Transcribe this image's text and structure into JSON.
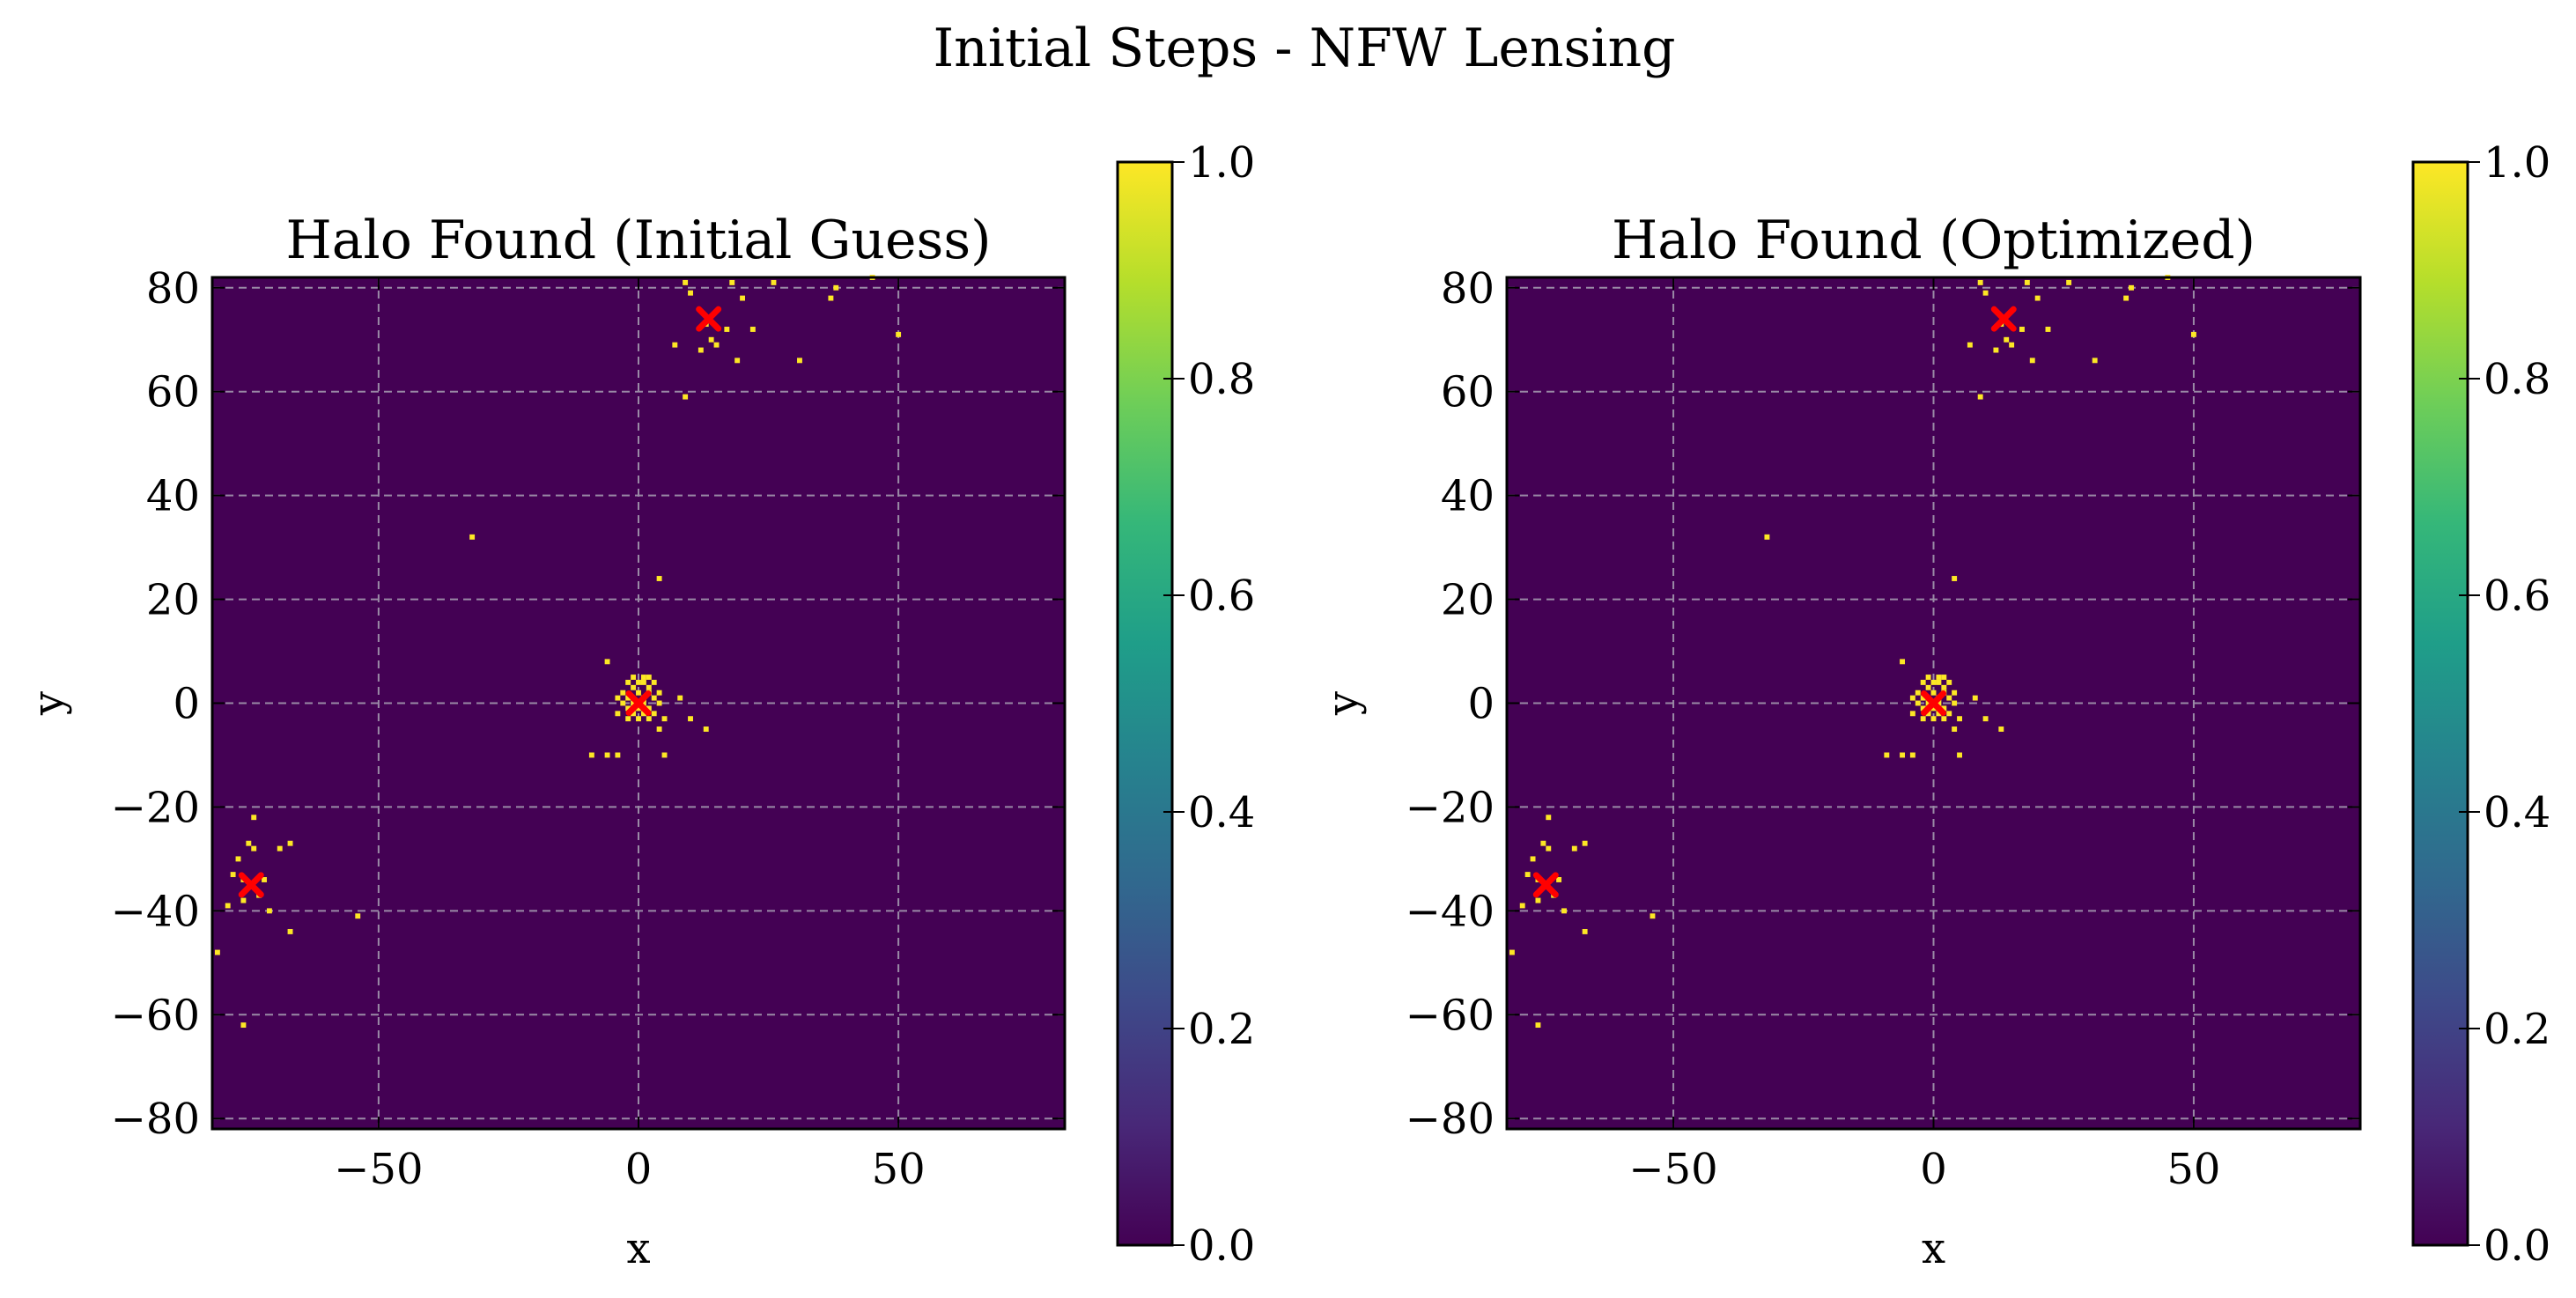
{
  "figure": {
    "title": "Initial Steps - NFW Lensing",
    "colors": {
      "background": "#440154",
      "source_pixel": "#fde725",
      "halo_marker": "#ff0000",
      "grid": "#9a8aa6",
      "colormap": [
        "#440154",
        "#482878",
        "#3e4989",
        "#31688e",
        "#26828e",
        "#1f9e89",
        "#35b779",
        "#6ece58",
        "#b5de2b",
        "#fde725"
      ]
    }
  },
  "chart_data": [
    {
      "type": "heatmap",
      "title": "Halo Found (Initial Guess)",
      "xlabel": "x",
      "ylabel": "y",
      "xlim": [
        -82,
        82
      ],
      "ylim": [
        -82,
        82
      ],
      "xticks": [
        -50,
        0,
        50
      ],
      "xtick_labels": [
        "−50",
        "0",
        "50"
      ],
      "yticks": [
        -80,
        -60,
        -40,
        -20,
        0,
        20,
        40,
        60,
        80
      ],
      "ytick_labels": [
        "−80",
        "−60",
        "−40",
        "−20",
        "0",
        "20",
        "40",
        "60",
        "80"
      ],
      "grid": true,
      "colorbar": {
        "range": [
          0.0,
          1.0
        ],
        "ticks": [
          0.0,
          0.2,
          0.4,
          0.6,
          0.8,
          1.0
        ],
        "tick_labels": [
          "0.0",
          "0.2",
          "0.4",
          "0.6",
          "0.8",
          "1.0"
        ],
        "colormap": "viridis"
      },
      "halos": [
        [
          13.5,
          74
        ],
        [
          0,
          0
        ],
        [
          -74.5,
          -35
        ]
      ],
      "pixels_value": 1.0,
      "pixels": [
        [
          9,
          81
        ],
        [
          18,
          81
        ],
        [
          26,
          81
        ],
        [
          45,
          82
        ],
        [
          10,
          79
        ],
        [
          20,
          78
        ],
        [
          38,
          80
        ],
        [
          37,
          78
        ],
        [
          22,
          72
        ],
        [
          13,
          73
        ],
        [
          14,
          70
        ],
        [
          15,
          69
        ],
        [
          17,
          72
        ],
        [
          12,
          68
        ],
        [
          7,
          69
        ],
        [
          19,
          66
        ],
        [
          31,
          66
        ],
        [
          50,
          71
        ],
        [
          9,
          59
        ],
        [
          -32,
          32
        ],
        [
          4,
          24
        ],
        [
          -6,
          8
        ],
        [
          -1,
          5
        ],
        [
          1,
          5
        ],
        [
          2,
          5
        ],
        [
          -2,
          4
        ],
        [
          0,
          4
        ],
        [
          1,
          4
        ],
        [
          3,
          4
        ],
        [
          -1,
          3
        ],
        [
          2,
          3
        ],
        [
          -3,
          2
        ],
        [
          0,
          2
        ],
        [
          2,
          2
        ],
        [
          4,
          2
        ],
        [
          -4,
          1
        ],
        [
          -2,
          1
        ],
        [
          1,
          1
        ],
        [
          3,
          1
        ],
        [
          -3,
          0
        ],
        [
          -1,
          0
        ],
        [
          1,
          0
        ],
        [
          4,
          0
        ],
        [
          -2,
          -1
        ],
        [
          0,
          -1
        ],
        [
          2,
          -1
        ],
        [
          -4,
          -2
        ],
        [
          -1,
          -2
        ],
        [
          1,
          -2
        ],
        [
          3,
          -2
        ],
        [
          -2,
          -3
        ],
        [
          0,
          -3
        ],
        [
          2,
          -3
        ],
        [
          5,
          -3
        ],
        [
          8,
          1
        ],
        [
          10,
          -3
        ],
        [
          13,
          -5
        ],
        [
          4,
          -5
        ],
        [
          -9,
          -10
        ],
        [
          -6,
          -10
        ],
        [
          -4,
          -10
        ],
        [
          5,
          -10
        ],
        [
          -74,
          -22
        ],
        [
          -75,
          -27
        ],
        [
          -74,
          -28
        ],
        [
          -69,
          -28
        ],
        [
          -67,
          -27
        ],
        [
          -77,
          -30
        ],
        [
          -78,
          -33
        ],
        [
          -76,
          -34
        ],
        [
          -72,
          -34
        ],
        [
          -73,
          -37
        ],
        [
          -79,
          -39
        ],
        [
          -76,
          -38
        ],
        [
          -71,
          -40
        ],
        [
          -67,
          -44
        ],
        [
          -54,
          -41
        ],
        [
          -81,
          -48
        ],
        [
          -76,
          -62
        ]
      ]
    },
    {
      "type": "heatmap",
      "title": "Halo Found (Optimized)",
      "xlabel": "x",
      "ylabel": "y",
      "xlim": [
        -82,
        82
      ],
      "ylim": [
        -82,
        82
      ],
      "xticks": [
        -50,
        0,
        50
      ],
      "xtick_labels": [
        "−50",
        "0",
        "50"
      ],
      "yticks": [
        -80,
        -60,
        -40,
        -20,
        0,
        20,
        40,
        60,
        80
      ],
      "ytick_labels": [
        "−80",
        "−60",
        "−40",
        "−20",
        "0",
        "20",
        "40",
        "60",
        "80"
      ],
      "grid": true,
      "colorbar": {
        "range": [
          0.0,
          1.0
        ],
        "ticks": [
          0.0,
          0.2,
          0.4,
          0.6,
          0.8,
          1.0
        ],
        "tick_labels": [
          "0.0",
          "0.2",
          "0.4",
          "0.6",
          "0.8",
          "1.0"
        ],
        "colormap": "viridis"
      },
      "halos": [
        [
          13.5,
          74
        ],
        [
          0,
          0
        ],
        [
          -74.5,
          -35
        ]
      ],
      "pixels_value": 1.0,
      "pixels": [
        [
          9,
          81
        ],
        [
          18,
          81
        ],
        [
          26,
          81
        ],
        [
          45,
          82
        ],
        [
          10,
          79
        ],
        [
          20,
          78
        ],
        [
          38,
          80
        ],
        [
          37,
          78
        ],
        [
          22,
          72
        ],
        [
          13,
          73
        ],
        [
          14,
          70
        ],
        [
          15,
          69
        ],
        [
          17,
          72
        ],
        [
          12,
          68
        ],
        [
          7,
          69
        ],
        [
          19,
          66
        ],
        [
          31,
          66
        ],
        [
          50,
          71
        ],
        [
          9,
          59
        ],
        [
          -32,
          32
        ],
        [
          4,
          24
        ],
        [
          -6,
          8
        ],
        [
          -1,
          5
        ],
        [
          1,
          5
        ],
        [
          2,
          5
        ],
        [
          -2,
          4
        ],
        [
          0,
          4
        ],
        [
          1,
          4
        ],
        [
          3,
          4
        ],
        [
          -1,
          3
        ],
        [
          2,
          3
        ],
        [
          -3,
          2
        ],
        [
          0,
          2
        ],
        [
          2,
          2
        ],
        [
          4,
          2
        ],
        [
          -4,
          1
        ],
        [
          -2,
          1
        ],
        [
          1,
          1
        ],
        [
          3,
          1
        ],
        [
          -3,
          0
        ],
        [
          -1,
          0
        ],
        [
          1,
          0
        ],
        [
          4,
          0
        ],
        [
          -2,
          -1
        ],
        [
          0,
          -1
        ],
        [
          2,
          -1
        ],
        [
          -4,
          -2
        ],
        [
          -1,
          -2
        ],
        [
          1,
          -2
        ],
        [
          3,
          -2
        ],
        [
          -2,
          -3
        ],
        [
          0,
          -3
        ],
        [
          2,
          -3
        ],
        [
          5,
          -3
        ],
        [
          8,
          1
        ],
        [
          10,
          -3
        ],
        [
          13,
          -5
        ],
        [
          4,
          -5
        ],
        [
          -9,
          -10
        ],
        [
          -6,
          -10
        ],
        [
          -4,
          -10
        ],
        [
          5,
          -10
        ],
        [
          -74,
          -22
        ],
        [
          -75,
          -27
        ],
        [
          -74,
          -28
        ],
        [
          -69,
          -28
        ],
        [
          -67,
          -27
        ],
        [
          -77,
          -30
        ],
        [
          -78,
          -33
        ],
        [
          -76,
          -34
        ],
        [
          -72,
          -34
        ],
        [
          -73,
          -37
        ],
        [
          -79,
          -39
        ],
        [
          -76,
          -38
        ],
        [
          -71,
          -40
        ],
        [
          -67,
          -44
        ],
        [
          -54,
          -41
        ],
        [
          -81,
          -48
        ],
        [
          -76,
          -62
        ]
      ]
    }
  ]
}
